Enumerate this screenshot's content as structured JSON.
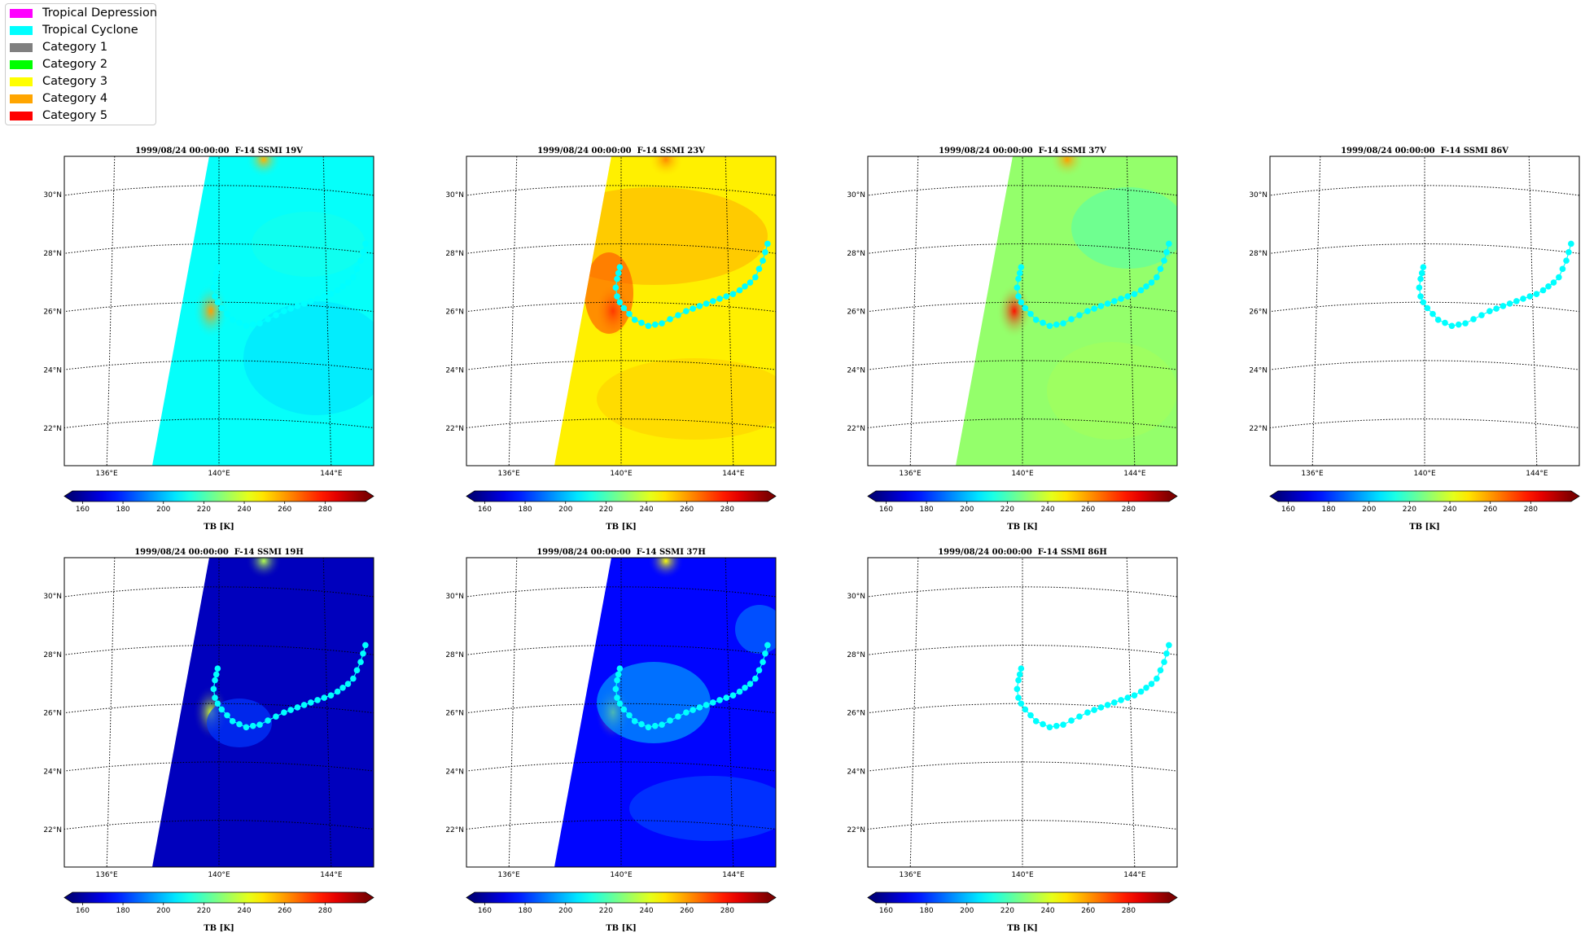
{
  "legend": {
    "items": [
      {
        "label": "Tropical Depression",
        "color": "#ff00ff"
      },
      {
        "label": "Tropical Cyclone",
        "color": "#00ffff"
      },
      {
        "label": "Category 1",
        "color": "#808080"
      },
      {
        "label": "Category 2",
        "color": "#00ff00"
      },
      {
        "label": "Category 3",
        "color": "#ffff00"
      },
      {
        "label": "Category 4",
        "color": "#ffa500"
      },
      {
        "label": "Category 5",
        "color": "#ff0000"
      }
    ]
  },
  "colorbar": {
    "ticks": [
      "160",
      "180",
      "200",
      "220",
      "240",
      "260",
      "280"
    ],
    "label": "TB [K]",
    "range": [
      155,
      300
    ],
    "colormap": "jet"
  },
  "map": {
    "lat_ticks": [
      "30°N",
      "28°N",
      "26°N",
      "24°N",
      "22°N"
    ],
    "lon_ticks": [
      "136°E",
      "140°E",
      "144°E"
    ],
    "grid": "dotted"
  },
  "track_color": "#00ffff",
  "panels": [
    {
      "title": "1999/08/24 00:00:00  F-14 SSMI 19V",
      "background": "cyan",
      "has_data": true
    },
    {
      "title": "1999/08/24 00:00:00  F-14 SSMI 23V",
      "background": "yellow",
      "has_data": true
    },
    {
      "title": "1999/08/24 00:00:00  F-14 SSMI 37V",
      "background": "green",
      "has_data": true
    },
    {
      "title": "1999/08/24 00:00:00  F-14 SSMI 86V",
      "background": "none",
      "has_data": false
    },
    {
      "title": "1999/08/24 00:00:00  F-14 SSMI 19H",
      "background": "darkblue",
      "has_data": true
    },
    {
      "title": "1999/08/24 00:00:00  F-14 SSMI 37H",
      "background": "blue",
      "has_data": true
    },
    {
      "title": "1999/08/24 00:00:00  F-14 SSMI 86H",
      "background": "none",
      "has_data": false
    }
  ],
  "chart_data": {
    "type": "heatmap",
    "track": {
      "lat": [
        27.2,
        27.0,
        26.8,
        26.5,
        26.2,
        26.0,
        25.8,
        25.6,
        25.4,
        25.3,
        25.2,
        25.25,
        25.3,
        25.45,
        25.6,
        25.75,
        25.85,
        25.95,
        26.05,
        26.15,
        26.25,
        26.35,
        26.45,
        26.6,
        26.75,
        26.9,
        27.1,
        27.4,
        27.7,
        28.0,
        28.3
      ],
      "lon": [
        139.95,
        139.9,
        139.85,
        139.8,
        139.85,
        139.95,
        140.1,
        140.3,
        140.5,
        140.75,
        141.0,
        141.25,
        141.5,
        141.8,
        142.1,
        142.4,
        142.65,
        142.9,
        143.15,
        143.4,
        143.65,
        143.9,
        144.15,
        144.4,
        144.6,
        144.8,
        145.0,
        145.15,
        145.3,
        145.4,
        145.5
      ]
    },
    "storm_center": {
      "lat": 25.9,
      "lon": 139.8
    }
  }
}
